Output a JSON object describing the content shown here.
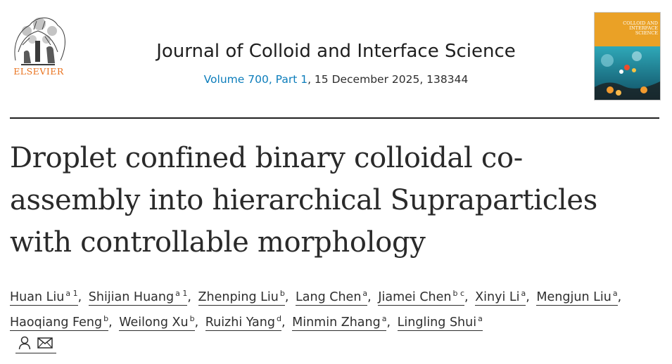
{
  "publisher": {
    "name": "ELSEVIER",
    "logo": "elsevier-tree-logo"
  },
  "journal": {
    "title": "Journal of Colloid and Interface Science",
    "volume_link": "Volume 700, Part 1",
    "issue_info": ", 15 December 2025, 138344"
  },
  "cover": {
    "title": "COLLOID AND\nINTERFACE\nSCIENCE"
  },
  "article": {
    "title": "Droplet confined binary colloidal co-assembly into hierarchical Supraparticles with controllable morphology"
  },
  "authors": [
    {
      "name": "Huan Liu",
      "sup": "a 1",
      "sep": ","
    },
    {
      "name": "Shijian Huang",
      "sup": "a 1",
      "sep": ","
    },
    {
      "name": "Zhenping Liu",
      "sup": "b",
      "sep": ","
    },
    {
      "name": "Lang Chen",
      "sup": "a",
      "sep": ","
    },
    {
      "name": "Jiamei Chen",
      "sup": "b c",
      "sep": ","
    },
    {
      "name": "Xinyi Li",
      "sup": "a",
      "sep": ","
    },
    {
      "name": "Mengjun Liu",
      "sup": "a",
      "sep": ","
    },
    {
      "name": "Haoqiang Feng",
      "sup": "b",
      "sep": ","
    },
    {
      "name": "Weilong Xu",
      "sup": "b",
      "sep": ","
    },
    {
      "name": "Ruizhi Yang",
      "sup": "d",
      "sep": ","
    },
    {
      "name": "Minmin Zhang",
      "sup": "a",
      "sep": ","
    },
    {
      "name": "Lingling Shui",
      "sup": "a",
      "sep": ""
    }
  ],
  "icons": [
    "person-icon",
    "mail-icon"
  ],
  "colors": {
    "elsevier_orange": "#e9711c",
    "link_blue": "#0c7dbb",
    "cover_orange": "#eaa126",
    "text": "#1f1f1f"
  }
}
